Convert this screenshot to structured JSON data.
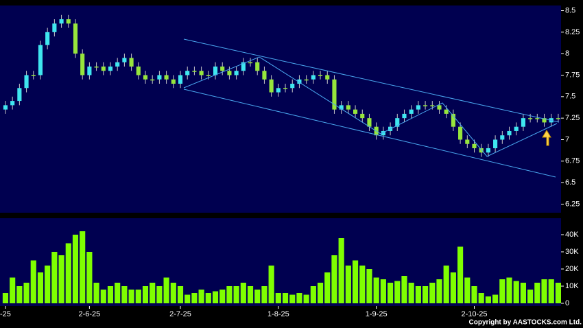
{
  "chart_data": {
    "type": "candlestick",
    "open": [
      7.35,
      7.4,
      7.45,
      7.6,
      7.75,
      7.75,
      8.1,
      8.25,
      8.35,
      8.4,
      8.35,
      8.0,
      7.75,
      7.85,
      7.85,
      7.8,
      7.85,
      7.9,
      7.95,
      7.85,
      7.75,
      7.7,
      7.7,
      7.75,
      7.7,
      7.65,
      7.75,
      7.8,
      7.8,
      7.75,
      7.75,
      7.85,
      7.8,
      7.75,
      7.8,
      7.9,
      7.9,
      7.8,
      7.7,
      7.55,
      7.6,
      7.6,
      7.65,
      7.7,
      7.7,
      7.75,
      7.75,
      7.7,
      7.35,
      7.4,
      7.35,
      7.3,
      7.25,
      7.15,
      7.05,
      7.1,
      7.15,
      7.25,
      7.3,
      7.35,
      7.4,
      7.4,
      7.4,
      7.35,
      7.3,
      7.15,
      7.0,
      6.95,
      6.9,
      6.85,
      6.9,
      7.0,
      7.05,
      7.1,
      7.15,
      7.25,
      7.25,
      7.25,
      7.2,
      7.25
    ],
    "high": [
      7.45,
      7.5,
      7.65,
      7.8,
      7.8,
      8.15,
      8.3,
      8.4,
      8.45,
      8.45,
      8.4,
      8.05,
      7.9,
      7.9,
      7.9,
      7.9,
      7.95,
      8.0,
      8.0,
      7.9,
      7.8,
      7.75,
      7.8,
      7.8,
      7.75,
      7.8,
      7.85,
      7.85,
      7.85,
      7.8,
      7.9,
      7.9,
      7.85,
      7.85,
      7.95,
      7.95,
      7.95,
      7.85,
      7.75,
      7.65,
      7.65,
      7.7,
      7.75,
      7.75,
      7.8,
      7.8,
      7.8,
      7.75,
      7.45,
      7.45,
      7.4,
      7.35,
      7.3,
      7.2,
      7.15,
      7.2,
      7.3,
      7.35,
      7.4,
      7.45,
      7.45,
      7.45,
      7.45,
      7.4,
      7.35,
      7.2,
      7.05,
      7.0,
      6.95,
      6.95,
      7.05,
      7.1,
      7.15,
      7.2,
      7.3,
      7.3,
      7.3,
      7.3,
      7.3,
      7.3
    ],
    "low": [
      7.3,
      7.35,
      7.4,
      7.55,
      7.7,
      7.7,
      8.05,
      8.2,
      8.3,
      8.3,
      7.95,
      7.7,
      7.7,
      7.8,
      7.75,
      7.75,
      7.8,
      7.85,
      7.8,
      7.7,
      7.65,
      7.65,
      7.65,
      7.65,
      7.6,
      7.6,
      7.7,
      7.75,
      7.7,
      7.7,
      7.7,
      7.75,
      7.7,
      7.7,
      7.75,
      7.85,
      7.75,
      7.65,
      7.5,
      7.5,
      7.55,
      7.55,
      7.6,
      7.65,
      7.65,
      7.7,
      7.65,
      7.3,
      7.3,
      7.3,
      7.25,
      7.2,
      7.1,
      7.0,
      7.0,
      7.05,
      7.1,
      7.2,
      7.25,
      7.3,
      7.35,
      7.35,
      7.3,
      7.25,
      7.1,
      6.95,
      6.9,
      6.85,
      6.8,
      6.8,
      6.85,
      6.95,
      7.0,
      7.05,
      7.1,
      7.2,
      7.2,
      7.15,
      7.15,
      7.2
    ],
    "close": [
      7.4,
      7.45,
      7.6,
      7.75,
      7.75,
      8.1,
      8.25,
      8.35,
      8.4,
      8.35,
      8.0,
      7.75,
      7.85,
      7.85,
      7.8,
      7.85,
      7.9,
      7.95,
      7.85,
      7.75,
      7.7,
      7.7,
      7.75,
      7.7,
      7.65,
      7.75,
      7.8,
      7.8,
      7.75,
      7.75,
      7.85,
      7.8,
      7.75,
      7.8,
      7.9,
      7.9,
      7.8,
      7.7,
      7.55,
      7.6,
      7.6,
      7.65,
      7.7,
      7.7,
      7.75,
      7.75,
      7.7,
      7.35,
      7.4,
      7.35,
      7.3,
      7.25,
      7.15,
      7.05,
      7.1,
      7.15,
      7.25,
      7.3,
      7.35,
      7.4,
      7.4,
      7.4,
      7.35,
      7.3,
      7.15,
      7.0,
      6.95,
      6.9,
      6.85,
      6.9,
      7.0,
      7.05,
      7.1,
      7.15,
      7.25,
      7.25,
      7.25,
      7.2,
      7.25,
      7.25
    ],
    "volume": [
      6000,
      15000,
      10000,
      12000,
      25000,
      18000,
      22000,
      30000,
      28000,
      35000,
      40000,
      42000,
      30000,
      12000,
      8000,
      10000,
      12000,
      10000,
      8000,
      8000,
      10000,
      12000,
      10000,
      15000,
      12000,
      10000,
      5000,
      6000,
      8000,
      6000,
      7000,
      8000,
      10000,
      10000,
      12000,
      10000,
      8000,
      10000,
      22000,
      6000,
      6000,
      5000,
      6000,
      5000,
      10000,
      12000,
      18000,
      28000,
      38000,
      22000,
      25000,
      22000,
      20000,
      15000,
      14000,
      12000,
      13000,
      16000,
      12000,
      10000,
      10000,
      12000,
      14000,
      22000,
      18000,
      33000,
      15000,
      10000,
      6000,
      4000,
      5000,
      14000,
      15000,
      13000,
      12000,
      8000,
      12000,
      14000,
      14000,
      12000
    ],
    "up_color": "#3fe6f0",
    "down_color": "#96e63c",
    "volume_color": "#7fff00",
    "xlim": [
      -0.78,
      79.4
    ],
    "xticks": [
      {
        "value": 0,
        "label": "-25"
      },
      {
        "value": 12,
        "label": "2-6-25"
      },
      {
        "value": 25,
        "label": "2-7-25"
      },
      {
        "value": 39,
        "label": "1-8-25"
      },
      {
        "value": 53,
        "label": "1-9-25"
      },
      {
        "value": 67,
        "label": "2-10-25"
      }
    ],
    "ylim": [
      6.15,
      8.56
    ],
    "yticks": [
      6.25,
      6.5,
      6.75,
      7,
      7.25,
      7.5,
      7.75,
      8,
      8.25,
      8.5
    ],
    "volume_ylim": [
      -1600,
      49600
    ],
    "volume_yticks": [
      0,
      {
        "value": 10000,
        "label": "10K"
      },
      {
        "value": 20000,
        "label": "20K"
      },
      {
        "value": 30000,
        "label": "30K"
      },
      {
        "value": 40000,
        "label": "40K"
      }
    ],
    "copyright": "Copyright by AASTOCKS.com Ltd."
  }
}
